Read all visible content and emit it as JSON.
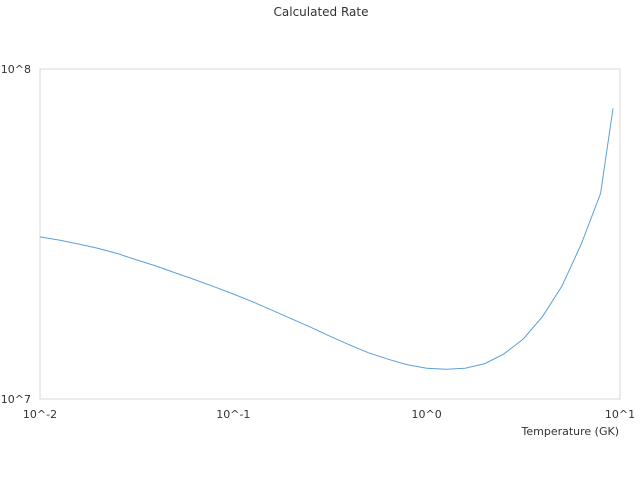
{
  "chart_data": {
    "type": "line",
    "title": "Calculated Rate",
    "subtitle": "",
    "xlabel": "Temperature (GK)",
    "ylabel": "",
    "x_scale": "log",
    "y_scale": "log",
    "xlim": [
      0.01,
      10
    ],
    "ylim": [
      10000000,
      100000000
    ],
    "x_ticks": [
      "10^-2",
      "10^-1",
      "10^0",
      "10^1"
    ],
    "y_ticks": [
      "10^7",
      "10^8"
    ],
    "grid": false,
    "legend": "none",
    "colors": {
      "line": "#5aa0dc",
      "frame": "#d9d9d9",
      "text": "#333333"
    },
    "series": [
      {
        "x": [
          0.01,
          0.0126,
          0.0158,
          0.02,
          0.0251,
          0.0316,
          0.0398,
          0.0501,
          0.0631,
          0.0794,
          0.1,
          0.126,
          0.158,
          0.2,
          0.251,
          0.316,
          0.398,
          0.501,
          0.631,
          0.794,
          1.0,
          1.26,
          1.58,
          2.0,
          2.51,
          3.16,
          3.98,
          5.01,
          6.31,
          7.94,
          9.2
        ],
        "y": [
          31000000,
          30300000,
          29500000,
          28600000,
          27600000,
          26400000,
          25300000,
          24100000,
          23000000,
          21900000,
          20800000,
          19700000,
          18600000,
          17500000,
          16500000,
          15500000,
          14600000,
          13800000,
          13200000,
          12700000,
          12400000,
          12300000,
          12400000,
          12800000,
          13700000,
          15200000,
          17800000,
          22000000,
          29500000,
          42000000,
          76000000
        ]
      }
    ]
  }
}
